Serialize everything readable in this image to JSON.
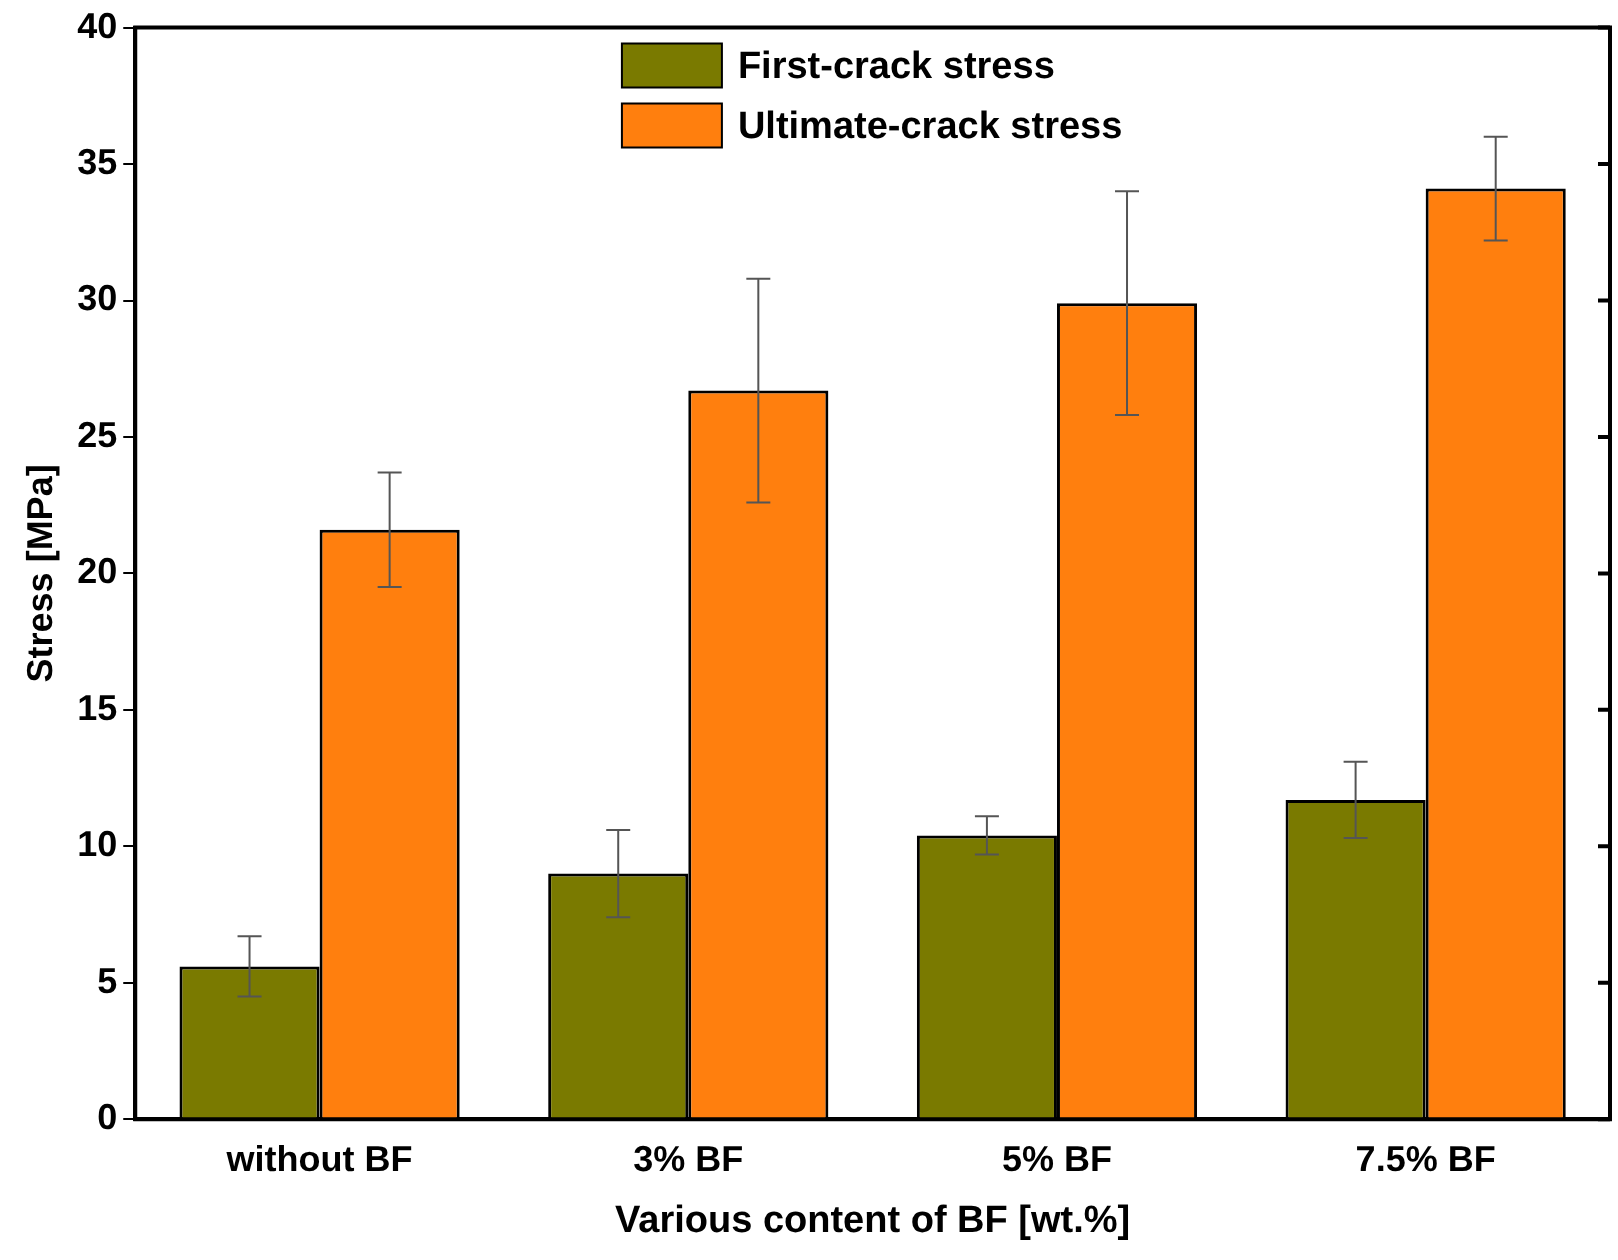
{
  "chart_data": {
    "type": "bar",
    "xlabel": "Various content of BF [wt.%]",
    "ylabel": "Stress [MPa]",
    "categories": [
      "without BF",
      "3% BF",
      "5% BF",
      "7.5% BF"
    ],
    "series": [
      {
        "name": "First-crack stress",
        "color": "#7a7a00",
        "values": [
          5.6,
          9.0,
          10.4,
          11.7
        ],
        "errors": [
          1.1,
          1.6,
          0.7,
          1.4
        ]
      },
      {
        "name": "Ultimate-crack stress",
        "color": "#ff7f0e",
        "values": [
          21.6,
          26.7,
          29.9,
          34.1
        ],
        "errors": [
          2.1,
          4.1,
          4.1,
          1.9
        ]
      }
    ],
    "ylim": [
      0,
      40
    ],
    "yticks": [
      0,
      5,
      10,
      15,
      20,
      25,
      30,
      35,
      40
    ],
    "grid": false,
    "legend": "top"
  }
}
